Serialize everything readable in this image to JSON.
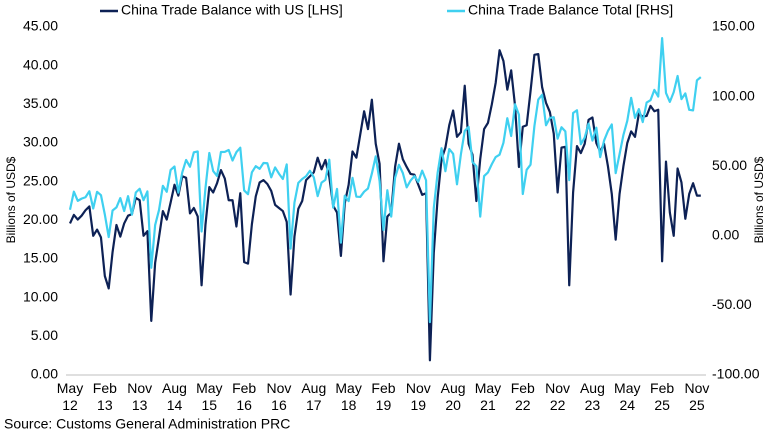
{
  "chart_data": {
    "type": "line",
    "source": "Source: Customs General Administration PRC",
    "ylabel": "Billions of USD$",
    "y2label": "Billions of USD$",
    "categories": [
      "May\n12",
      null,
      null,
      null,
      null,
      null,
      null,
      null,
      null,
      "Feb\n13",
      null,
      null,
      null,
      null,
      null,
      null,
      null,
      null,
      "Nov\n13",
      null,
      null,
      null,
      null,
      null,
      null,
      null,
      null,
      "Aug\n14",
      null,
      null,
      null,
      null,
      null,
      null,
      null,
      null,
      "May\n15",
      null,
      null,
      null,
      null,
      null,
      null,
      null,
      null,
      "Feb\n16",
      null,
      null,
      null,
      null,
      null,
      null,
      null,
      null,
      "Nov\n16",
      null,
      null,
      null,
      null,
      null,
      null,
      null,
      null,
      "Aug\n17",
      null,
      null,
      null,
      null,
      null,
      null,
      null,
      null,
      "May\n18",
      null,
      null,
      null,
      null,
      null,
      null,
      null,
      null,
      "Feb\n19",
      null,
      null,
      null,
      null,
      null,
      null,
      null,
      null,
      "Nov\n19",
      null,
      null,
      null,
      null,
      null,
      null,
      null,
      null,
      "Aug\n20",
      null,
      null,
      null,
      null,
      null,
      null,
      null,
      null,
      "May\n21",
      null,
      null,
      null,
      null,
      null,
      null,
      null,
      null,
      "Feb\n22",
      null,
      null,
      null,
      null,
      null,
      null,
      null,
      null,
      "Nov\n22",
      null,
      null,
      null,
      null,
      null,
      null,
      null,
      null,
      "Aug\n23",
      null,
      null,
      null,
      null,
      null,
      null,
      null,
      null,
      "May\n24",
      null,
      null,
      null,
      null,
      null,
      null,
      null,
      null,
      "Feb\n25",
      null,
      null,
      null,
      null,
      null,
      null,
      null,
      null,
      "Nov\n25",
      null
    ],
    "series": [
      {
        "name": "China Trade Balance with US [LHS]",
        "color": "#0d2155",
        "axis": "y",
        "values": [
          19.6,
          20.7,
          20.1,
          20.6,
          21.3,
          21.8,
          18.0,
          18.8,
          17.8,
          12.8,
          11.2,
          15.9,
          19.4,
          17.9,
          19.6,
          20.6,
          20.8,
          22.9,
          22.6,
          18.0,
          18.6,
          7.0,
          14.5,
          17.8,
          21.2,
          20.1,
          22.3,
          24.6,
          23.2,
          25.7,
          25.5,
          20.9,
          21.6,
          20.5,
          11.6,
          19.4,
          24.3,
          23.6,
          24.8,
          26.5,
          25.4,
          22.6,
          22.6,
          19.2,
          23.5,
          14.6,
          14.4,
          19.5,
          23.1,
          24.9,
          25.2,
          24.7,
          23.8,
          22.0,
          21.6,
          21.2,
          19.8,
          10.4,
          17.9,
          21.5,
          22.5,
          25.2,
          25.7,
          26.2,
          28.1,
          26.6,
          27.8,
          25.6,
          21.9,
          21.0,
          15.4,
          22.2,
          24.6,
          28.9,
          28.1,
          31.1,
          34.1,
          31.8,
          35.6,
          29.9,
          27.3,
          14.7,
          20.5,
          21.0,
          26.9,
          29.9,
          27.9,
          26.9,
          26.0,
          25.9,
          24.6,
          23.3,
          23.5,
          1.9,
          15.8,
          22.9,
          27.9,
          29.4,
          32.3,
          34.2,
          30.8,
          31.4,
          37.4,
          29.9,
          28.5,
          22.5,
          27.9,
          31.8,
          32.6,
          35.0,
          37.8,
          42.0,
          40.6,
          36.9,
          39.4,
          34.8,
          26.9,
          32.1,
          32.3,
          36.7,
          41.4,
          41.5,
          37.2,
          35.2,
          34.0,
          31.2,
          23.6,
          29.4,
          29.5,
          11.6,
          23.6,
          29.6,
          28.7,
          29.9,
          33.0,
          33.3,
          30.0,
          28.9,
          29.9,
          27.0,
          23.4,
          17.5,
          23.4,
          27.0,
          30.0,
          31.5,
          30.8,
          33.8,
          33.4,
          33.5,
          34.8,
          34.1,
          34.3,
          14.7,
          27.6,
          21.0,
          18.0,
          26.7,
          24.9,
          20.2,
          23.4,
          24.8,
          23.2,
          23.2
        ]
      },
      {
        "name": "China Trade Balance Total [RHS]",
        "color": "#3fd0f0",
        "axis": "y2",
        "values": [
          18.7,
          31.7,
          25.1,
          26.7,
          27.7,
          32.0,
          19.6,
          31.6,
          29.2,
          15.3,
          -0.9,
          18.2,
          20.4,
          27.1,
          17.8,
          28.5,
          15.2,
          31.1,
          33.8,
          25.6,
          31.9,
          -23.0,
          7.7,
          18.5,
          35.9,
          31.6,
          47.3,
          49.8,
          31.0,
          45.4,
          54.5,
          49.6,
          60.0,
          60.6,
          3.1,
          34.1,
          59.5,
          46.5,
          43.0,
          60.2,
          60.3,
          61.6,
          54.1,
          60.1,
          63.3,
          32.6,
          29.9,
          45.6,
          50.0,
          48.1,
          52.3,
          52.1,
          42.0,
          49.1,
          44.6,
          40.8,
          51.3,
          -9.2,
          23.9,
          38.0,
          40.8,
          42.8,
          46.7,
          42.0,
          28.5,
          38.2,
          40.2,
          54.7,
          20.3,
          33.7,
          -4.9,
          28.8,
          24.9,
          41.6,
          28.1,
          27.9,
          31.7,
          34.0,
          44.7,
          57.1,
          39.2,
          4.1,
          32.7,
          13.8,
          41.7,
          51.0,
          45.1,
          34.8,
          39.7,
          42.9,
          38.7,
          46.8,
          39.9,
          -62.0,
          19.9,
          45.3,
          62.9,
          46.4,
          62.3,
          58.9,
          37.0,
          58.4,
          75.4,
          78.2,
          53.0,
          50.0,
          13.8,
          42.9,
          45.5,
          51.5,
          56.6,
          58.3,
          66.8,
          84.5,
          71.7,
          94.5,
          87.0,
          30.0,
          47.4,
          51.1,
          78.8,
          97.9,
          101.3,
          79.4,
          84.7,
          85.2,
          69.8,
          78.0,
          75.0,
          40.0,
          88.2,
          90.2,
          65.8,
          70.6,
          80.6,
          68.4,
          77.7,
          56.5,
          68.4,
          75.3,
          80.0,
          45.0,
          58.6,
          72.4,
          82.6,
          99.1,
          84.7,
          91.0,
          81.7,
          95.7,
          97.4,
          104.8,
          100.0,
          142.0,
          102.6,
          96.2,
          103.2,
          114.8,
          98.2,
          102.3,
          90.5,
          90.1,
          111.7,
          114.0
        ]
      }
    ],
    "ylim": [
      0,
      45
    ],
    "yticks": [
      {
        "value": 0,
        "label": "0.00"
      },
      {
        "value": 5,
        "label": "5.00"
      },
      {
        "value": 10,
        "label": "10.00"
      },
      {
        "value": 15,
        "label": "15.00"
      },
      {
        "value": 20,
        "label": "20.00"
      },
      {
        "value": 25,
        "label": "25.00"
      },
      {
        "value": 30,
        "label": "30.00"
      },
      {
        "value": 35,
        "label": "35.00"
      },
      {
        "value": 40,
        "label": "40.00"
      },
      {
        "value": 45,
        "label": "45.00"
      }
    ],
    "y2lim": [
      -100,
      150
    ],
    "y2ticks": [
      {
        "value": -100,
        "label": "-100.00"
      },
      {
        "value": -50,
        "label": "-50.00"
      },
      {
        "value": 0,
        "label": "0.00"
      },
      {
        "value": 50,
        "label": "50.00"
      },
      {
        "value": 100,
        "label": "100.00"
      },
      {
        "value": 150,
        "label": "150.00"
      }
    ],
    "legend": "top"
  }
}
